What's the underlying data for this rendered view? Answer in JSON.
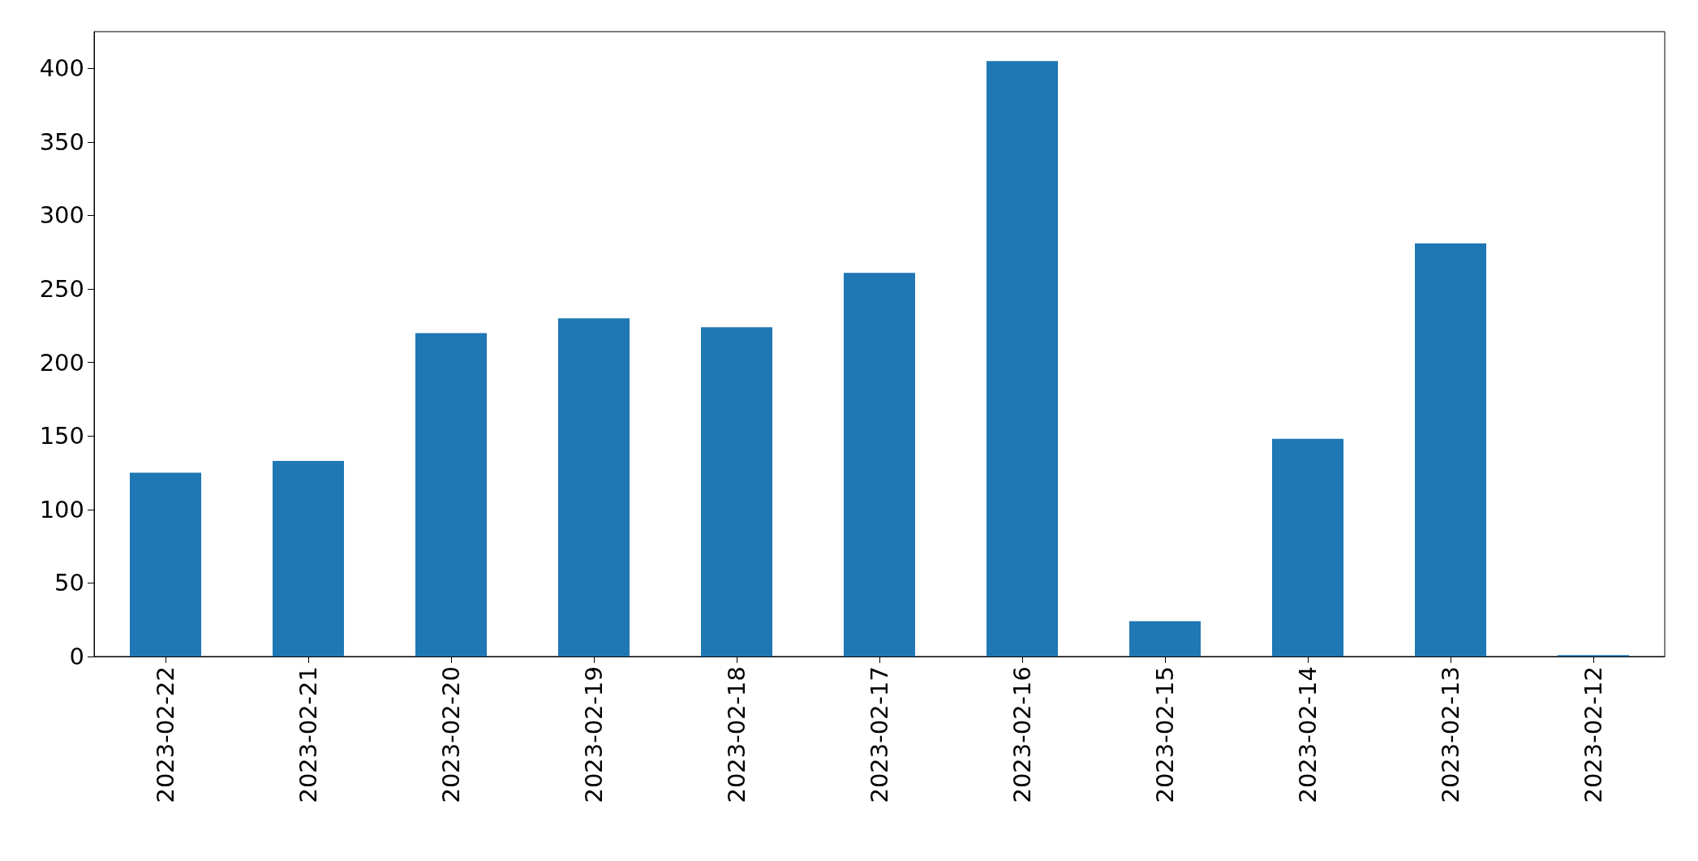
{
  "chart_data": {
    "type": "bar",
    "categories": [
      "2023-02-22",
      "2023-02-21",
      "2023-02-20",
      "2023-02-19",
      "2023-02-18",
      "2023-02-17",
      "2023-02-16",
      "2023-02-15",
      "2023-02-14",
      "2023-02-13",
      "2023-02-12"
    ],
    "values": [
      125,
      133,
      220,
      230,
      224,
      261,
      405,
      24,
      148,
      281,
      1
    ],
    "color": "#1f77b4",
    "ylim": [
      0,
      425
    ],
    "yticks": [
      0,
      50,
      100,
      150,
      200,
      250,
      300,
      350,
      400
    ],
    "grid": false
  }
}
